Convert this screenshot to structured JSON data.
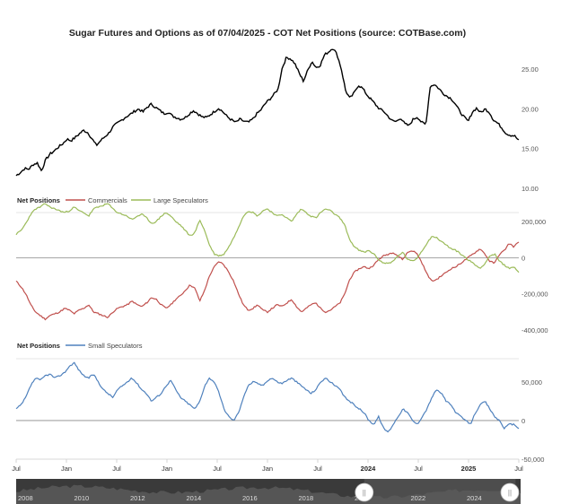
{
  "chart_data": [
    {
      "type": "line",
      "title": "Sugar Futures and Options as of 07/04/2025 - COT Net Positions (source: COTBase.com)",
      "series": [
        {
          "color": "#000000",
          "values": [
            11.6,
            12.0,
            12.5,
            12.4,
            13.0,
            13.2,
            12.2,
            13.6,
            14.3,
            14.7,
            15.2,
            15.6,
            16.2,
            16.0,
            16.4,
            16.9,
            17.3,
            17.0,
            16.2,
            15.4,
            16.0,
            16.5,
            17.0,
            17.8,
            18.2,
            18.6,
            19.0,
            19.3,
            19.7,
            20.0,
            19.6,
            20.2,
            20.6,
            20.2,
            19.8,
            19.4,
            19.6,
            19.1,
            18.9,
            18.7,
            18.9,
            19.4,
            19.8,
            19.4,
            19.0,
            18.9,
            19.3,
            19.7,
            20.1,
            19.6,
            19.0,
            18.6,
            18.3,
            18.7,
            18.4,
            18.3,
            18.7,
            19.4,
            19.9,
            20.7,
            21.2,
            21.8,
            22.5,
            25.2,
            26.5,
            26.3,
            25.7,
            24.5,
            23.5,
            24.8,
            26.0,
            25.2,
            25.5,
            26.8,
            27.2,
            27.7,
            26.8,
            25.0,
            22.3,
            21.3,
            22.0,
            23.0,
            22.6,
            21.8,
            21.2,
            20.6,
            20.0,
            19.7,
            19.1,
            18.5,
            18.4,
            18.9,
            18.1,
            17.9,
            18.7,
            19.0,
            18.3,
            18.0,
            22.8,
            23.1,
            22.6,
            22.0,
            21.6,
            21.3,
            20.6,
            19.7,
            19.0,
            18.4,
            19.6,
            20.1,
            19.5,
            20.0,
            19.6,
            18.6,
            18.2,
            17.6,
            16.9,
            16.7,
            16.6,
            16.0
          ]
        }
      ],
      "ylim": [
        10,
        27.5
      ],
      "yticks": [
        "10.00",
        "15.00",
        "20.00",
        "25.00"
      ]
    },
    {
      "type": "line",
      "legend_title": "Net Positions",
      "series": [
        {
          "name": "Commercials",
          "color": "#c0504d",
          "values": [
            -130000,
            -160000,
            -200000,
            -260000,
            -300000,
            -320000,
            -340000,
            -320000,
            -310000,
            -300000,
            -280000,
            -290000,
            -310000,
            -290000,
            -280000,
            -260000,
            -300000,
            -310000,
            -320000,
            -330000,
            -300000,
            -280000,
            -270000,
            -260000,
            -240000,
            -260000,
            -270000,
            -250000,
            -220000,
            -230000,
            -260000,
            -280000,
            -260000,
            -230000,
            -210000,
            -180000,
            -150000,
            -170000,
            -240000,
            -180000,
            -100000,
            -50000,
            -20000,
            -40000,
            -80000,
            -130000,
            -200000,
            -260000,
            -290000,
            -280000,
            -260000,
            -290000,
            -300000,
            -280000,
            -260000,
            -270000,
            -250000,
            -230000,
            -270000,
            -300000,
            -280000,
            -260000,
            -250000,
            -280000,
            -300000,
            -290000,
            -270000,
            -250000,
            -200000,
            -120000,
            -80000,
            -60000,
            -50000,
            -60000,
            -40000,
            -10000,
            10000,
            20000,
            30000,
            10000,
            -10000,
            30000,
            40000,
            20000,
            -30000,
            -90000,
            -130000,
            -120000,
            -100000,
            -80000,
            -60000,
            -50000,
            -30000,
            -10000,
            10000,
            30000,
            50000,
            20000,
            -20000,
            -30000,
            20000,
            40000,
            80000,
            60000,
            90000
          ]
        },
        {
          "name": "Large Speculators",
          "color": "#9bbb59",
          "values": [
            130000,
            150000,
            190000,
            240000,
            270000,
            280000,
            300000,
            280000,
            270000,
            260000,
            250000,
            260000,
            280000,
            260000,
            250000,
            230000,
            270000,
            280000,
            290000,
            300000,
            270000,
            250000,
            240000,
            230000,
            210000,
            230000,
            240000,
            220000,
            190000,
            200000,
            230000,
            250000,
            230000,
            200000,
            180000,
            150000,
            120000,
            140000,
            210000,
            150000,
            70000,
            20000,
            10000,
            20000,
            60000,
            110000,
            170000,
            230000,
            260000,
            250000,
            230000,
            260000,
            270000,
            250000,
            230000,
            240000,
            220000,
            200000,
            240000,
            270000,
            250000,
            230000,
            220000,
            250000,
            270000,
            260000,
            240000,
            220000,
            180000,
            100000,
            60000,
            40000,
            30000,
            40000,
            20000,
            -10000,
            -30000,
            -30000,
            -20000,
            10000,
            30000,
            -10000,
            -20000,
            0,
            40000,
            80000,
            120000,
            110000,
            90000,
            70000,
            50000,
            40000,
            20000,
            0,
            -20000,
            -40000,
            -60000,
            -30000,
            10000,
            20000,
            -20000,
            -40000,
            -60000,
            -50000,
            -80000
          ]
        }
      ],
      "ylim": [
        -400000,
        250000
      ],
      "yticks": [
        "-400,000",
        "-200,000",
        "0",
        "200,000"
      ]
    },
    {
      "type": "line",
      "legend_title": "Net Positions",
      "series": [
        {
          "name": "Small Speculators",
          "color": "#4f81bd",
          "values": [
            15000,
            20000,
            30000,
            45000,
            55000,
            52000,
            58000,
            60000,
            55000,
            58000,
            62000,
            70000,
            75000,
            65000,
            58000,
            55000,
            60000,
            50000,
            40000,
            35000,
            30000,
            40000,
            45000,
            50000,
            55000,
            48000,
            40000,
            35000,
            25000,
            30000,
            35000,
            45000,
            52000,
            40000,
            30000,
            25000,
            20000,
            15000,
            25000,
            45000,
            55000,
            50000,
            35000,
            15000,
            5000,
            0,
            10000,
            30000,
            45000,
            50000,
            48000,
            45000,
            52000,
            55000,
            50000,
            48000,
            52000,
            55000,
            50000,
            45000,
            40000,
            35000,
            40000,
            50000,
            55000,
            50000,
            45000,
            40000,
            30000,
            25000,
            20000,
            15000,
            10000,
            0,
            -5000,
            5000,
            -10000,
            -15000,
            -5000,
            5000,
            15000,
            10000,
            0,
            -5000,
            5000,
            15000,
            30000,
            40000,
            35000,
            25000,
            20000,
            10000,
            5000,
            0,
            -5000,
            10000,
            20000,
            25000,
            15000,
            5000,
            0,
            -10000,
            -5000,
            -5000,
            -10000
          ]
        }
      ],
      "ylim": [
        -50000,
        80000
      ],
      "yticks": [
        "-50,000",
        "0",
        "50,000"
      ]
    }
  ],
  "x_axis": {
    "ticks": [
      {
        "label": "Jul",
        "bold": false
      },
      {
        "label": "Jan",
        "bold": false
      },
      {
        "label": "Jul",
        "bold": false
      },
      {
        "label": "Jan",
        "bold": false
      },
      {
        "label": "Jul",
        "bold": false
      },
      {
        "label": "Jan",
        "bold": false
      },
      {
        "label": "Jul",
        "bold": false
      },
      {
        "label": "2024",
        "bold": true
      },
      {
        "label": "Jul",
        "bold": false
      },
      {
        "label": "2025",
        "bold": true
      },
      {
        "label": "Jul",
        "bold": false
      }
    ]
  },
  "navigator": {
    "labels": [
      "2008",
      "2010",
      "2012",
      "2014",
      "2016",
      "2018",
      "2020",
      "2022",
      "2024"
    ],
    "handle_glyph": "||",
    "range": [
      0.69,
      0.99
    ]
  },
  "colors": {
    "price": "#000000",
    "commercials": "#c0504d",
    "large_specs": "#9bbb59",
    "small_specs": "#4f81bd",
    "navigator_bg": "#3a3a3a"
  }
}
